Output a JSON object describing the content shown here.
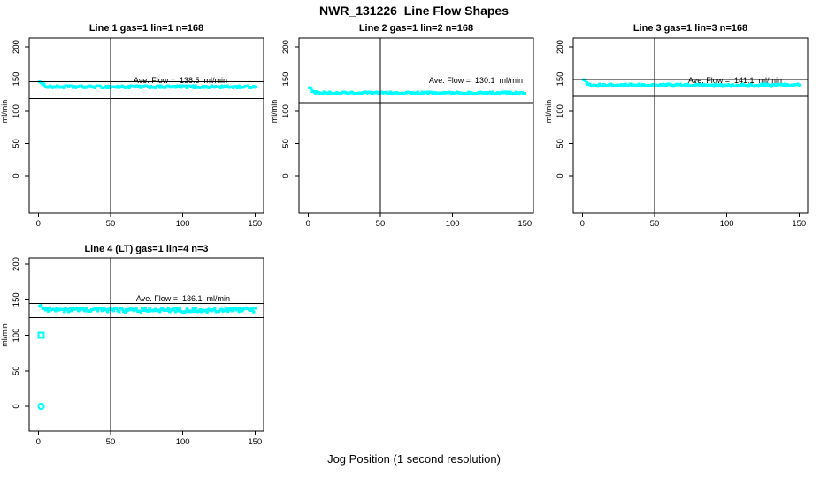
{
  "figure": {
    "title": "NWR_131226  Line Flow Shapes",
    "xlabel": "Jog Position (1 second resolution)",
    "background_color": "#ffffff",
    "axis_color": "#000000",
    "point_color": "#00ffff"
  },
  "chart_data": [
    {
      "type": "scatter",
      "title": "Line 1 gas=1 lin=1 n=168",
      "annotation": "Ave. Flow =  138.5  ml/min",
      "ave_flow_ml_min": 138.5,
      "n": 168,
      "ylabel": "ml/min",
      "x_ticks": [
        0,
        50,
        100,
        150
      ],
      "y_ticks": [
        0,
        50,
        100,
        150,
        200
      ],
      "xlim": [
        0,
        150
      ],
      "ylim": [
        0,
        200
      ],
      "vline_x": 50,
      "upper_hline": 146,
      "lower_hline": 120,
      "start_flow": 147,
      "settle_flow": 138,
      "noise": 1.6,
      "outliers": []
    },
    {
      "type": "scatter",
      "title": "Line 2 gas=1 lin=2 n=168",
      "annotation": "Ave. Flow =  130.1  ml/min",
      "ave_flow_ml_min": 130.1,
      "n": 168,
      "ylabel": "ml/min",
      "x_ticks": [
        0,
        50,
        100,
        150
      ],
      "y_ticks": [
        0,
        50,
        100,
        150,
        200
      ],
      "xlim": [
        0,
        150
      ],
      "ylim": [
        0,
        200
      ],
      "vline_x": 50,
      "upper_hline": 138,
      "lower_hline": 112,
      "start_flow": 138,
      "settle_flow": 128.5,
      "noise": 1.6,
      "outliers": []
    },
    {
      "type": "scatter",
      "title": "Line 3 gas=1 lin=3 n=168",
      "annotation": "Ave. Flow =  141.1  ml/min",
      "ave_flow_ml_min": 141.1,
      "n": 168,
      "ylabel": "ml/min",
      "x_ticks": [
        0,
        50,
        100,
        150
      ],
      "y_ticks": [
        0,
        50,
        100,
        150,
        200
      ],
      "xlim": [
        0,
        150
      ],
      "ylim": [
        0,
        200
      ],
      "vline_x": 50,
      "upper_hline": 149,
      "lower_hline": 123,
      "start_flow": 150,
      "settle_flow": 140.5,
      "noise": 1.6,
      "outliers": []
    },
    {
      "type": "scatter",
      "title": "Line 4 (LT) gas=1 lin=4 n=3",
      "annotation": "Ave. Flow =  136.1  ml/min",
      "ave_flow_ml_min": 136.1,
      "n": 3,
      "ylabel": "ml/min",
      "x_ticks": [
        0,
        50,
        100,
        150
      ],
      "y_ticks": [
        0,
        50,
        100,
        150,
        200
      ],
      "xlim": [
        0,
        150
      ],
      "ylim": [
        0,
        200
      ],
      "vline_x": 50,
      "upper_hline": 145,
      "lower_hline": 125,
      "start_flow": 141,
      "settle_flow": 135.5,
      "noise": 2.8,
      "outliers": [
        [
          2,
          100
        ],
        [
          2,
          0
        ]
      ]
    }
  ]
}
